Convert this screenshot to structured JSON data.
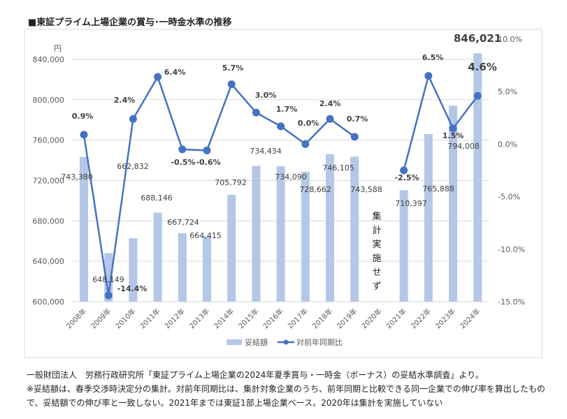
{
  "title": "■東証プライム上場企業の賞与･一時金水準の推移",
  "chart_data": {
    "type": "bar+line",
    "title": "■東証プライム上場企業の賞与･一時金水準の推移",
    "categories": [
      "2008年",
      "2009年",
      "2010年",
      "2011年",
      "2012年",
      "2013年",
      "2014年",
      "2015年",
      "2016年",
      "2017年",
      "2018年",
      "2019年",
      "2020年",
      "2021年",
      "2022年",
      "2023年",
      "2024年"
    ],
    "series": [
      {
        "name": "妥結額",
        "type": "bar",
        "axis": "left",
        "color": "#b4c7e7",
        "values": [
          743380,
          648149,
          662832,
          688146,
          667724,
          664415,
          705792,
          734434,
          734090,
          728662,
          746105,
          743588,
          null,
          710397,
          765888,
          794008,
          846021
        ],
        "labels": [
          "743,380",
          "648,149",
          "662,832",
          "688,146",
          "667,724",
          "664,415",
          "705,792",
          "734,434",
          "734,090",
          "728,662",
          "746,105",
          "743,588",
          "",
          "710,397",
          "765,888",
          "794,008",
          "846,021"
        ]
      },
      {
        "name": "対前年同期比",
        "type": "line",
        "axis": "right",
        "color": "#4472c4",
        "values": [
          0.9,
          -14.4,
          2.4,
          6.4,
          -0.5,
          -0.6,
          5.7,
          3.0,
          1.7,
          0.0,
          2.4,
          0.7,
          null,
          -2.5,
          6.5,
          1.5,
          4.6
        ],
        "labels": [
          "0.9%",
          "-14.4%",
          "2.4%",
          "6.4%",
          "-0.5%",
          "-0.6%",
          "5.7%",
          "3.0%",
          "1.7%",
          "0.0%",
          "2.4%",
          "0.7%",
          "",
          "-2.5%",
          "6.5%",
          "1.5%",
          "4.6%"
        ]
      }
    ],
    "left_axis": {
      "unit": "円",
      "ylim": [
        600000,
        860000
      ],
      "ticks": [
        "600,000",
        "640,000",
        "680,000",
        "720,000",
        "760,000",
        "800,000",
        "840,000"
      ]
    },
    "right_axis": {
      "ylim": [
        -15,
        10
      ],
      "ticks": [
        "-15.0%",
        "-10.0%",
        "-5.0%",
        "0.0%",
        "5.0%",
        "10.0%"
      ]
    },
    "annotation": "集計実施せず",
    "legend_position": "bottom",
    "grid": true
  },
  "notes": [
    "一般財団法人　労務行政研究所「東証プライム上場企業の2024年夏季賞与・一時金（ボーナス）の妥結水準調査」より。",
    "※妥結額は、春季交渉時決定分の集計。対前年同期比は、集計対象企業のうち、前年同期と比較できる同一企業での伸び率を算出したもので、妥結額での伸び率と一致しない。2021年までは東証1部上場企業ベース。2020年は集計を実施していない"
  ]
}
